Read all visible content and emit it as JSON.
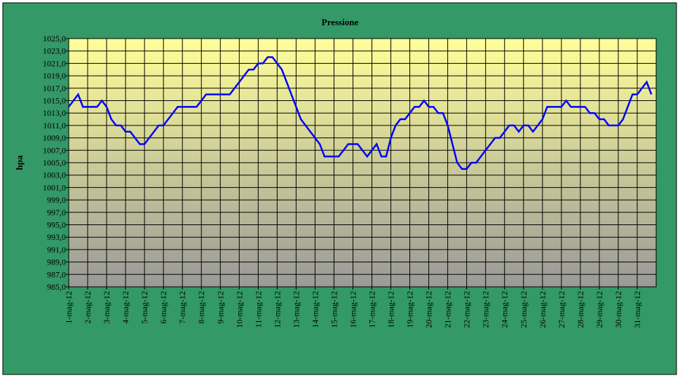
{
  "chart_data": {
    "type": "line",
    "title": "Pressione",
    "y_label": "hpa",
    "categories": [
      "1-mag-12",
      null,
      null,
      null,
      "2-mag-12",
      null,
      null,
      null,
      "3-mag-12",
      null,
      null,
      null,
      "4-mag-12",
      null,
      null,
      null,
      "5-mag-12",
      null,
      null,
      null,
      "6-mag-12",
      null,
      null,
      null,
      "7-mag-12",
      null,
      null,
      null,
      "8-mag-12",
      null,
      null,
      null,
      "9-mag-12",
      null,
      null,
      null,
      "10-mag-12",
      null,
      null,
      null,
      "11-mag-12",
      null,
      null,
      null,
      "12-mag-12",
      null,
      null,
      null,
      "13-mag-12",
      null,
      null,
      null,
      "14-mag-12",
      null,
      null,
      null,
      "15-mag-12",
      null,
      null,
      null,
      "16-mag-12",
      null,
      null,
      null,
      "17-mag-12",
      null,
      null,
      null,
      "18-mag-12",
      null,
      null,
      null,
      "19-mag-12",
      null,
      null,
      null,
      "20-mag-12",
      null,
      null,
      null,
      "21-mag-12",
      null,
      null,
      null,
      "22-mag-12",
      null,
      null,
      null,
      "23-mag-12",
      null,
      null,
      null,
      "24-mag-12",
      null,
      null,
      null,
      "25-mag-12",
      null,
      null,
      null,
      "26-mag-12",
      null,
      null,
      null,
      "27-mag-12",
      null,
      null,
      null,
      "28-mag-12",
      null,
      null,
      null,
      "29-mag-12",
      null,
      null,
      null,
      "30-mag-12",
      null,
      null,
      null,
      "31-mag-12",
      null,
      null,
      null
    ],
    "series": [
      {
        "name": "Pressione",
        "color": "#0000ff",
        "values": [
          1014,
          1015,
          1016,
          1014,
          1014,
          1014,
          1014,
          1015,
          1014,
          1012,
          1011,
          1011,
          1010,
          1010,
          1009,
          1008,
          1008,
          1009,
          1010,
          1011,
          1011,
          1012,
          1013,
          1014,
          1014,
          1014,
          1014,
          1014,
          1015,
          1016,
          1016,
          1016,
          1016,
          1016,
          1016,
          1017,
          1018,
          1019,
          1020,
          1020,
          1021,
          1021,
          1022,
          1022,
          1021,
          1020,
          1018,
          1016,
          1014,
          1012,
          1011,
          1010,
          1009,
          1008,
          1006,
          1006,
          1006,
          1006,
          1007,
          1008,
          1008,
          1008,
          1007,
          1006,
          1007,
          1008,
          1006,
          1006,
          1009,
          1011,
          1012,
          1012,
          1013,
          1014,
          1014,
          1015,
          1014,
          1014,
          1013,
          1013,
          1011,
          1008,
          1005,
          1004,
          1004,
          1005,
          1005,
          1006,
          1007,
          1008,
          1009,
          1009,
          1010,
          1011,
          1011,
          1010,
          1011,
          1011,
          1010,
          1011,
          1012,
          1014,
          1014,
          1014,
          1014,
          1015,
          1014,
          1014,
          1014,
          1014,
          1013,
          1013,
          1012,
          1012,
          1011,
          1011,
          1011,
          1012,
          1014,
          1016,
          1016,
          1017,
          1018,
          1016
        ]
      }
    ],
    "ylim": [
      985,
      1025
    ],
    "yticks": [
      {
        "value": 985,
        "label": "985,0"
      },
      {
        "value": 987,
        "label": "987,0"
      },
      {
        "value": 989,
        "label": "989,0"
      },
      {
        "value": 991,
        "label": "991,0"
      },
      {
        "value": 993,
        "label": "993,0"
      },
      {
        "value": 995,
        "label": "995,0"
      },
      {
        "value": 997,
        "label": "997,0"
      },
      {
        "value": 999,
        "label": "999,0"
      },
      {
        "value": 1001,
        "label": "1001,0"
      },
      {
        "value": 1003,
        "label": "1003,0"
      },
      {
        "value": 1005,
        "label": "1005,0"
      },
      {
        "value": 1007,
        "label": "1007,0"
      },
      {
        "value": 1009,
        "label": "1009,0"
      },
      {
        "value": 1011,
        "label": "1011,0"
      },
      {
        "value": 1013,
        "label": "1013,0"
      },
      {
        "value": 1015,
        "label": "1015,0"
      },
      {
        "value": 1017,
        "label": "1017,0"
      },
      {
        "value": 1019,
        "label": "1019,0"
      },
      {
        "value": 1021,
        "label": "1021,0"
      },
      {
        "value": 1023,
        "label": "1023,0"
      },
      {
        "value": 1025,
        "label": "1025,0"
      }
    ],
    "grid": true
  }
}
